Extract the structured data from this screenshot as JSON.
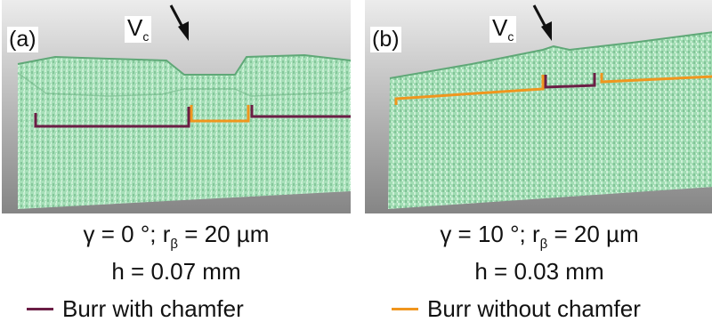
{
  "panels": [
    {
      "label": "(a)",
      "vc_main": "V",
      "vc_sub": "c",
      "caption_gamma_prefix": "γ = 0 °; r",
      "caption_gamma_sub": "β",
      "caption_gamma_suffix": " = 20 µm",
      "caption_h": "h = 0.07 mm"
    },
    {
      "label": "(b)",
      "vc_main": "V",
      "vc_sub": "c",
      "caption_gamma_prefix": "γ = 10 °; r",
      "caption_gamma_sub": "β",
      "caption_gamma_suffix": " = 20 µm",
      "caption_h": "h = 0.03 mm"
    }
  ],
  "legend": {
    "with_chamfer": "Burr with chamfer",
    "without_chamfer": "Burr without chamfer"
  },
  "colors": {
    "burr_with_chamfer": "#6b1e45",
    "burr_without_chamfer": "#f0961e",
    "surface": "#9fdcb3",
    "background_top": "#e6e6e6",
    "background_bottom": "#8a8a8a"
  }
}
